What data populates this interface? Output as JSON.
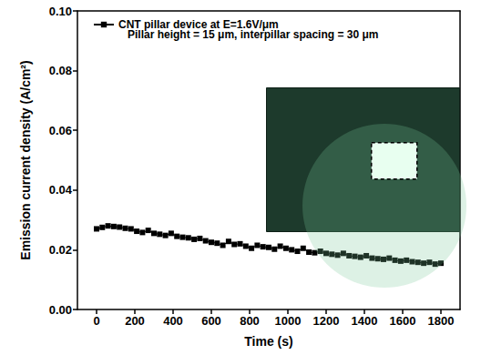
{
  "chart_data": {
    "type": "line",
    "marker": "square",
    "color": "#000000",
    "x_label": "Time (s)",
    "y_label": "Emission current density (A/cm²)",
    "legend": "top-left",
    "grid": false,
    "annotations": [
      "Pillar height = 15 μm, interpillar spacing = 30 μm"
    ],
    "series": [
      {
        "name": "CNT pillar device at E=1.6V/μm",
        "color": "#000000",
        "x": [
          0,
          30,
          60,
          90,
          120,
          150,
          180,
          210,
          240,
          270,
          300,
          330,
          360,
          390,
          420,
          450,
          480,
          510,
          540,
          570,
          600,
          630,
          660,
          690,
          720,
          750,
          780,
          810,
          840,
          870,
          900,
          930,
          960,
          990,
          1020,
          1050,
          1080,
          1110,
          1140,
          1170,
          1200,
          1230,
          1260,
          1290,
          1320,
          1350,
          1380,
          1410,
          1440,
          1470,
          1500,
          1530,
          1560,
          1590,
          1620,
          1650,
          1680,
          1710,
          1740,
          1770,
          1800
        ],
        "values": [
          0.027,
          0.0275,
          0.028,
          0.0278,
          0.0276,
          0.0272,
          0.027,
          0.0262,
          0.0258,
          0.0265,
          0.0255,
          0.0252,
          0.0248,
          0.0255,
          0.0245,
          0.0242,
          0.024,
          0.0235,
          0.0238,
          0.023,
          0.0225,
          0.0222,
          0.0215,
          0.0228,
          0.0218,
          0.022,
          0.0212,
          0.0205,
          0.0215,
          0.021,
          0.0208,
          0.0202,
          0.0212,
          0.0205,
          0.02,
          0.0195,
          0.0205,
          0.0192,
          0.019,
          0.0195,
          0.0188,
          0.0185,
          0.0182,
          0.0188,
          0.018,
          0.0178,
          0.0175,
          0.018,
          0.0172,
          0.017,
          0.0168,
          0.0172,
          0.0165,
          0.0162,
          0.0165,
          0.016,
          0.0158,
          0.0155,
          0.0158,
          0.0152,
          0.0155
        ]
      }
    ],
    "xlim": [
      -100,
      1900
    ],
    "xticks": [
      0,
      200,
      400,
      600,
      800,
      1000,
      1200,
      1400,
      1600,
      1800
    ],
    "ylim": [
      0,
      0.1
    ],
    "yticks": [
      {
        "value": 0,
        "label": "0.00"
      },
      {
        "value": 0.02,
        "label": "0.02"
      },
      {
        "value": 0.04,
        "label": "0.04"
      },
      {
        "value": 0.06,
        "label": "0.06"
      },
      {
        "value": 0.08,
        "label": "0.08"
      },
      {
        "value": 0.1,
        "label": "0.10"
      }
    ]
  }
}
